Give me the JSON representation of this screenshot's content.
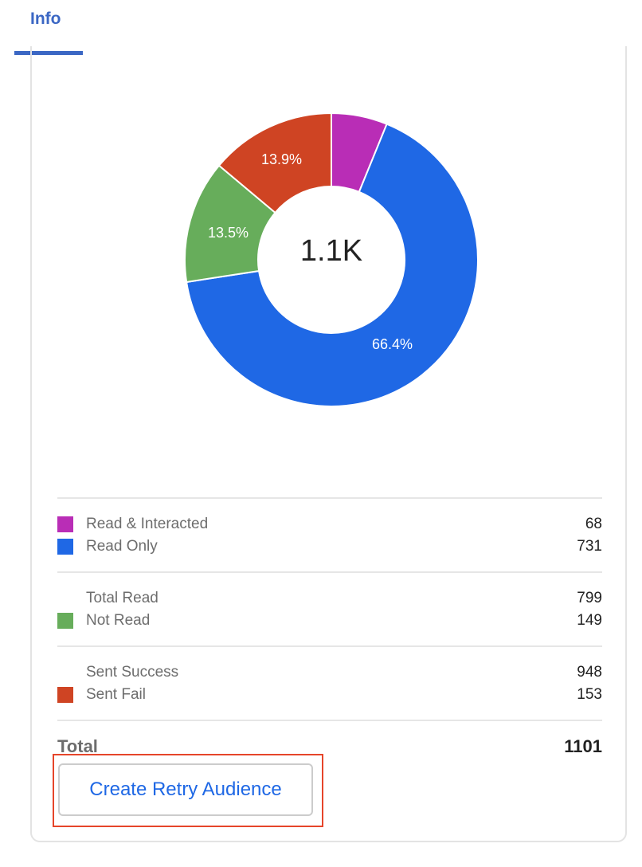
{
  "tabs": [
    {
      "label": "Info",
      "active": true,
      "color": "#3B67C4"
    }
  ],
  "chart_data": {
    "type": "pie",
    "subtype": "donut",
    "center_label": "1.1K",
    "total": 1101,
    "slices": [
      {
        "name": "Read & Interacted",
        "value": 68,
        "percent": 6.2,
        "color": "#B92DB6",
        "label": ""
      },
      {
        "name": "Read Only",
        "value": 731,
        "percent": 66.4,
        "color": "#1F68E5",
        "label": "66.4%"
      },
      {
        "name": "Not Read",
        "value": 149,
        "percent": 13.5,
        "color": "#67AD5B",
        "label": "13.5%"
      },
      {
        "name": "Sent Fail",
        "value": 153,
        "percent": 13.9,
        "color": "#CF4423",
        "label": "13.9%"
      }
    ],
    "start_angle": "top, clockwise"
  },
  "legend": {
    "groups": [
      [
        {
          "label": "Read & Interacted",
          "value": "68",
          "color": "#B92DB6"
        },
        {
          "label": "Read Only",
          "value": "731",
          "color": "#1F68E5"
        }
      ],
      [
        {
          "label": "Total Read",
          "value": "799",
          "color": null
        },
        {
          "label": "Not Read",
          "value": "149",
          "color": "#67AD5B"
        }
      ],
      [
        {
          "label": "Sent Success",
          "value": "948",
          "color": null
        },
        {
          "label": "Sent Fail",
          "value": "153",
          "color": "#CF4423"
        }
      ]
    ],
    "total": {
      "label": "Total",
      "value": "1101"
    }
  },
  "actions": {
    "create_retry_audience_label": "Create Retry Audience"
  }
}
